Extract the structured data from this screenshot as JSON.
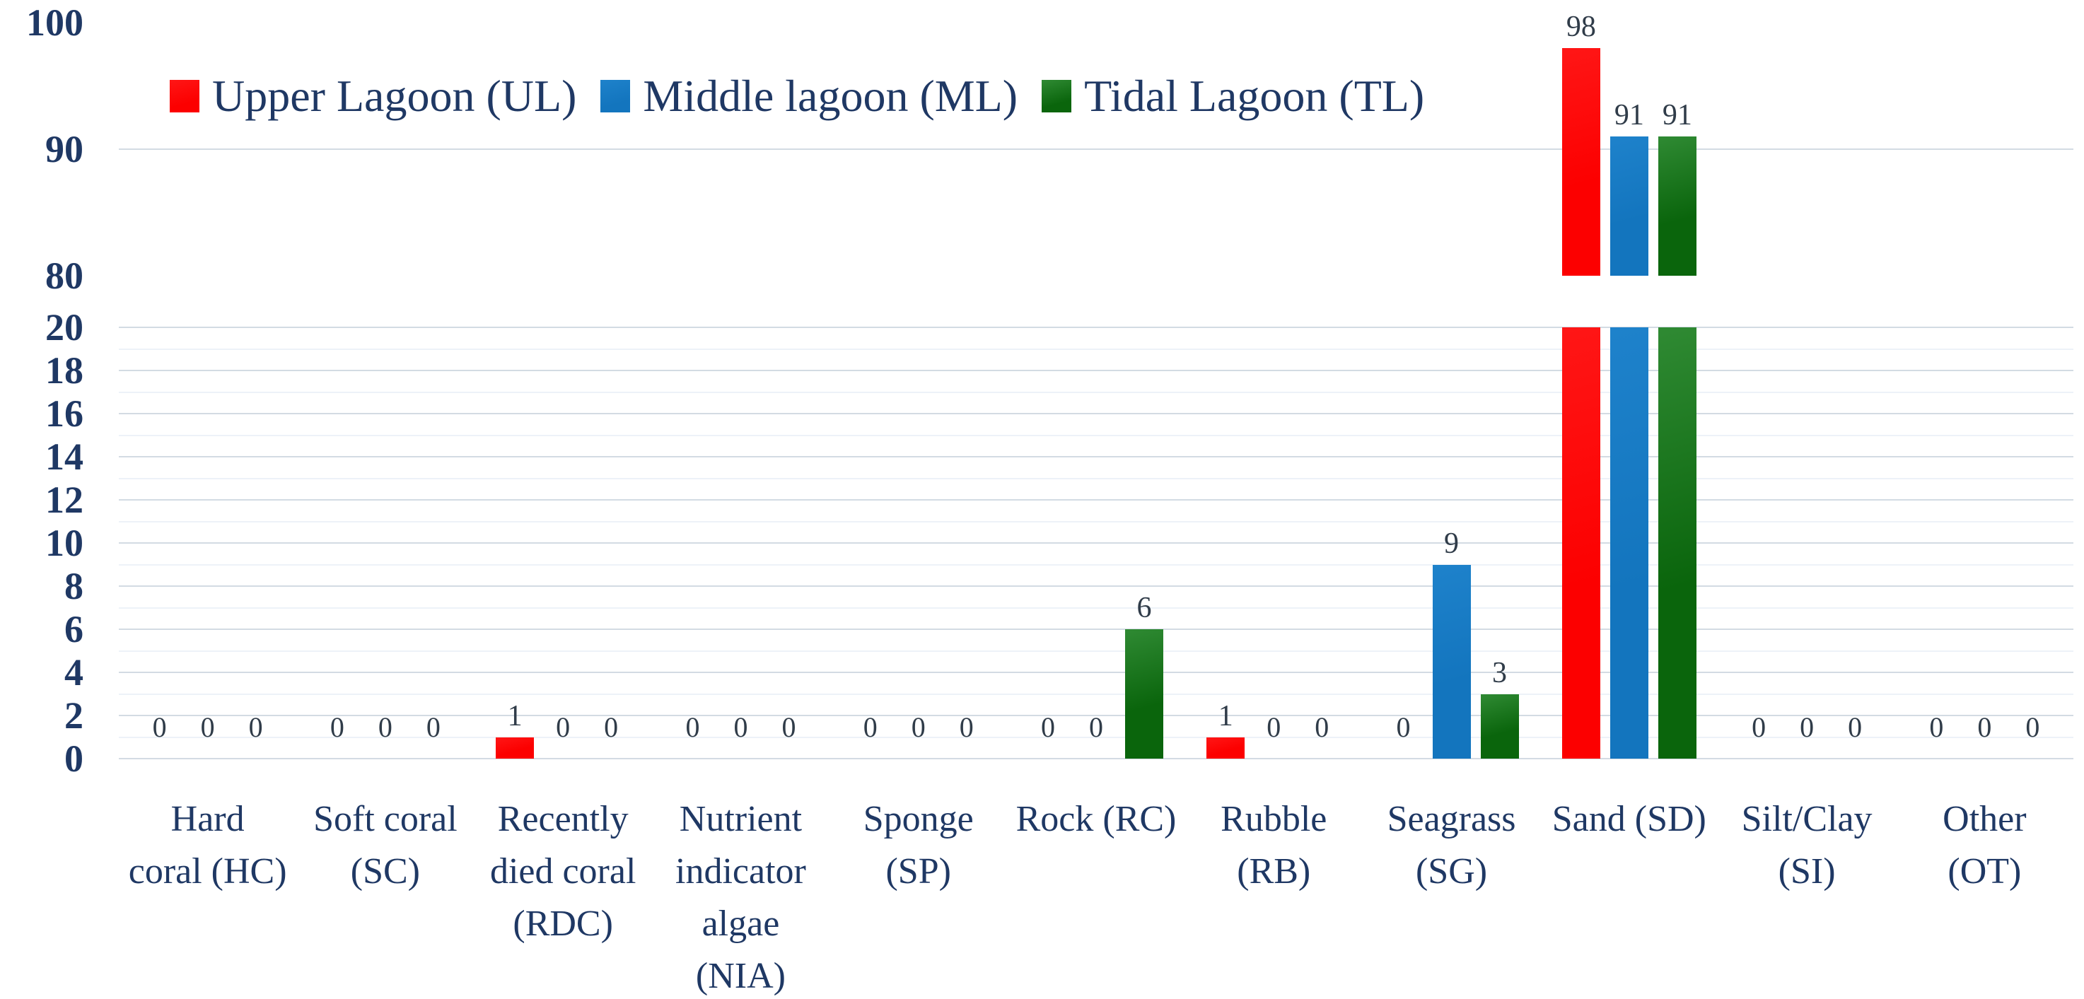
{
  "chart_data": {
    "type": "bar",
    "title": "",
    "description": "Broken y-axis grouped bar chart of substrate/benthic cover percentage by lagoon zone",
    "legend_position": "top-left",
    "colors": {
      "text_navy": "#1F3864",
      "data_label": "#303C49",
      "gridline_major": "#D3DBE3",
      "gridline_minor": "#EDF2F8",
      "background": "#FFFFFF"
    },
    "y_axis": {
      "broken": true,
      "upper_range": [
        80,
        100
      ],
      "upper_ticks": [
        "100",
        "90",
        "80"
      ],
      "upper_tick_values": [
        100,
        90,
        80
      ],
      "upper_gridlines_at": [
        90
      ],
      "lower_range": [
        0,
        20
      ],
      "lower_ticks": [
        "20",
        "18",
        "16",
        "14",
        "12",
        "10",
        "8",
        "6",
        "4",
        "2",
        "0"
      ],
      "lower_tick_values": [
        20,
        18,
        16,
        14,
        12,
        10,
        8,
        6,
        4,
        2,
        0
      ]
    },
    "categories": [
      {
        "label": "Hard coral (HC)",
        "lines": [
          "Hard",
          "coral (HC)"
        ]
      },
      {
        "label": "Soft coral (SC)",
        "lines": [
          "Soft coral",
          "(SC)"
        ]
      },
      {
        "label": "Recently died coral (RDC)",
        "lines": [
          "Recently",
          "died coral",
          "(RDC)"
        ]
      },
      {
        "label": "Nutrient indicator algae (NIA)",
        "lines": [
          "Nutrient",
          "indicator",
          "algae",
          "(NIA)"
        ]
      },
      {
        "label": "Sponge (SP)",
        "lines": [
          "Sponge",
          "(SP)"
        ]
      },
      {
        "label": "Rock (RC)",
        "lines": [
          "Rock (RC)"
        ]
      },
      {
        "label": "Rubble (RB)",
        "lines": [
          "Rubble",
          "(RB)"
        ]
      },
      {
        "label": "Seagrass (SG)",
        "lines": [
          "Seagrass",
          "(SG)"
        ]
      },
      {
        "label": "Sand (SD)",
        "lines": [
          "Sand (SD)"
        ]
      },
      {
        "label": "Silt/Clay (SI)",
        "lines": [
          "Silt/Clay",
          "(SI)"
        ]
      },
      {
        "label": "Other (OT)",
        "lines": [
          "Other",
          "(OT)"
        ]
      }
    ],
    "series": [
      {
        "name": "Upper Lagoon (UL)",
        "color": "#FC0000",
        "color_light": "#FF1616",
        "values": [
          0,
          0,
          1,
          0,
          0,
          0,
          1,
          0,
          98,
          0,
          0
        ]
      },
      {
        "name": "Middle lagoon (ML)",
        "color": "#1375BE",
        "color_light": "#1E82CB",
        "values": [
          0,
          0,
          0,
          0,
          0,
          0,
          0,
          9,
          91,
          0,
          0
        ]
      },
      {
        "name": "Tidal Lagoon (TL)",
        "color": "#0A650C",
        "color_light": "#2F8A33",
        "values": [
          0,
          0,
          0,
          0,
          0,
          6,
          0,
          3,
          91,
          0,
          0
        ]
      }
    ],
    "data_labels_shown": true
  }
}
